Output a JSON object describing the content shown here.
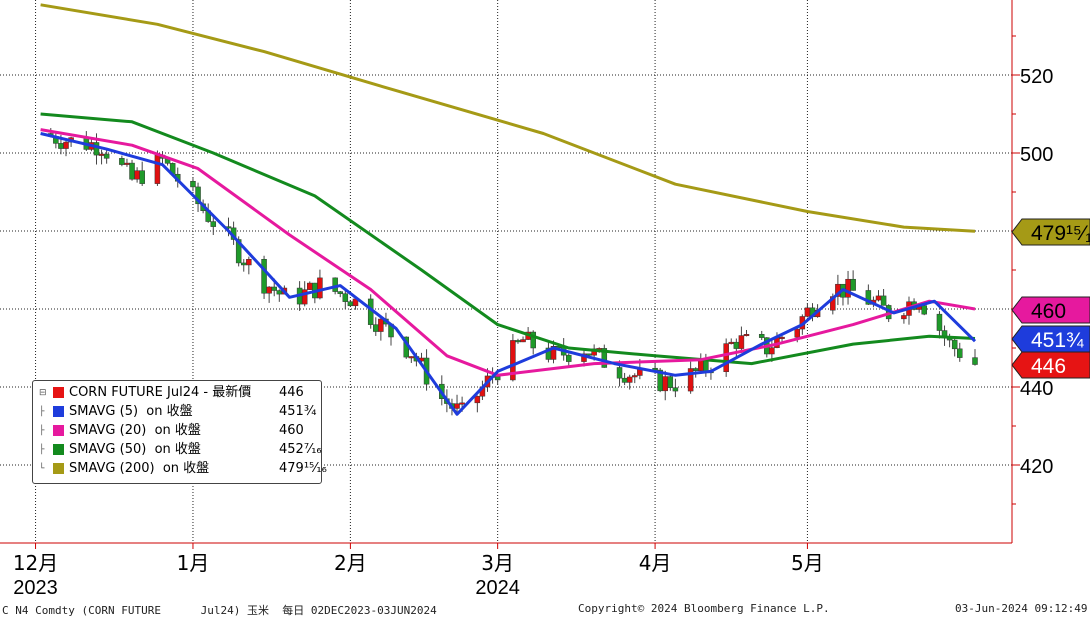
{
  "chart_data": {
    "type": "candlestick-with-lines",
    "instrument": "CORN FUTURE Jul24",
    "ylim": [
      400,
      540
    ],
    "y_ticks": [
      "420",
      "440",
      "460",
      "480",
      "500",
      "520"
    ],
    "x_ticks": [
      {
        "label": "12月",
        "x": "2023-12-01"
      },
      {
        "label": "1月",
        "x": "2024-01-01"
      },
      {
        "label": "2月",
        "x": "2024-02-01"
      },
      {
        "label": "3月",
        "x": "2024-03-01"
      },
      {
        "label": "4月",
        "x": "2024-04-01"
      },
      {
        "label": "5月",
        "x": "2024-05-01"
      }
    ],
    "year_labels": [
      {
        "label": "2023",
        "x": "2023-12-01"
      },
      {
        "label": "2024",
        "x": "2024-03-01"
      }
    ],
    "date_range": [
      "2023-12-02",
      "2024-06-03"
    ],
    "candle_close_series": [
      [
        "2023-12-02",
        505
      ],
      [
        "2023-12-08",
        503
      ],
      [
        "2023-12-14",
        502
      ],
      [
        "2023-12-20",
        493
      ],
      [
        "2023-12-26",
        498
      ],
      [
        "2024-01-02",
        487
      ],
      [
        "2024-01-08",
        478
      ],
      [
        "2024-01-14",
        468
      ],
      [
        "2024-01-20",
        462
      ],
      [
        "2024-01-26",
        466
      ],
      [
        "2024-02-01",
        463
      ],
      [
        "2024-02-07",
        456
      ],
      [
        "2024-02-13",
        449
      ],
      [
        "2024-02-19",
        437
      ],
      [
        "2024-02-23",
        433
      ],
      [
        "2024-02-29",
        443
      ],
      [
        "2024-03-06",
        452
      ],
      [
        "2024-03-12",
        448
      ],
      [
        "2024-03-18",
        450
      ],
      [
        "2024-03-24",
        445
      ],
      [
        "2024-03-30",
        442
      ],
      [
        "2024-04-05",
        441
      ],
      [
        "2024-04-11",
        445
      ],
      [
        "2024-04-17",
        452
      ],
      [
        "2024-04-23",
        450
      ],
      [
        "2024-04-29",
        456
      ],
      [
        "2024-05-05",
        466
      ],
      [
        "2024-05-11",
        464
      ],
      [
        "2024-05-17",
        459
      ],
      [
        "2024-05-23",
        463
      ],
      [
        "2024-05-29",
        451
      ],
      [
        "2024-06-03",
        446
      ]
    ],
    "series": [
      {
        "name": "SMAVG (5)  on 收盤",
        "value_label": "451¾",
        "color": "#1e3cdc",
        "points": [
          [
            "2023-12-02",
            505
          ],
          [
            "2023-12-15",
            501
          ],
          [
            "2023-12-26",
            497
          ],
          [
            "2024-01-08",
            480
          ],
          [
            "2024-01-20",
            463
          ],
          [
            "2024-01-30",
            466
          ],
          [
            "2024-02-10",
            455
          ],
          [
            "2024-02-22",
            433
          ],
          [
            "2024-03-01",
            444
          ],
          [
            "2024-03-12",
            450
          ],
          [
            "2024-03-24",
            446
          ],
          [
            "2024-04-05",
            443
          ],
          [
            "2024-04-12",
            444
          ],
          [
            "2024-04-22",
            451
          ],
          [
            "2024-04-30",
            456
          ],
          [
            "2024-05-08",
            465
          ],
          [
            "2024-05-18",
            459
          ],
          [
            "2024-05-26",
            462
          ],
          [
            "2024-06-03",
            451.75
          ]
        ]
      },
      {
        "name": "SMAVG (20)  on 收盤",
        "value_label": "460",
        "color": "#e6199e",
        "points": [
          [
            "2023-12-02",
            506
          ],
          [
            "2023-12-20",
            502
          ],
          [
            "2024-01-02",
            496
          ],
          [
            "2024-01-20",
            479
          ],
          [
            "2024-02-05",
            465
          ],
          [
            "2024-02-20",
            448
          ],
          [
            "2024-03-01",
            443
          ],
          [
            "2024-03-20",
            446
          ],
          [
            "2024-04-10",
            447
          ],
          [
            "2024-04-25",
            451
          ],
          [
            "2024-05-10",
            456
          ],
          [
            "2024-05-25",
            462
          ],
          [
            "2024-06-03",
            460
          ]
        ]
      },
      {
        "name": "SMAVG (50)  on 收盤",
        "value_label": "452⁷⁄₁₆",
        "color": "#138a1e",
        "points": [
          [
            "2023-12-02",
            510
          ],
          [
            "2023-12-20",
            508
          ],
          [
            "2024-01-05",
            500
          ],
          [
            "2024-01-25",
            489
          ],
          [
            "2024-02-15",
            470
          ],
          [
            "2024-03-01",
            456
          ],
          [
            "2024-03-15",
            450
          ],
          [
            "2024-04-01",
            448
          ],
          [
            "2024-04-20",
            446
          ],
          [
            "2024-05-10",
            451
          ],
          [
            "2024-05-25",
            453
          ],
          [
            "2024-06-03",
            452.4375
          ]
        ]
      },
      {
        "name": "SMAVG (200)  on 收盤",
        "value_label": "479¹⁵⁄₁₆",
        "color": "#a59a16",
        "points": [
          [
            "2023-12-02",
            538
          ],
          [
            "2023-12-25",
            533
          ],
          [
            "2024-01-15",
            526
          ],
          [
            "2024-02-10",
            516
          ],
          [
            "2024-03-10",
            505
          ],
          [
            "2024-04-05",
            492
          ],
          [
            "2024-05-01",
            485
          ],
          [
            "2024-05-20",
            481
          ],
          [
            "2024-06-03",
            479.9375
          ]
        ]
      }
    ],
    "last_price": {
      "name": "CORN FUTURE Jul24 - 最新價",
      "value_label": "446",
      "color": "#e61414"
    },
    "axis_tags": [
      {
        "label": "479¹⁵⁄₁₆",
        "value": 480,
        "color": "#a59a16",
        "text_color": "#000"
      },
      {
        "label": "460",
        "value": 460,
        "color": "#e6199e",
        "text_color": "#000"
      },
      {
        "label": "451¾",
        "value": 451.75,
        "color": "#1e3cdc",
        "text_color": "#fff"
      },
      {
        "label": "446",
        "value": 446,
        "color": "#e61414",
        "text_color": "#fff"
      }
    ],
    "grid": true,
    "legend_position": "bottom-left"
  },
  "legend": {
    "rows": [
      {
        "name": "CORN FUTURE Jul24 - 最新價",
        "value": "446",
        "color": "#e61414"
      },
      {
        "name": "SMAVG (5)  on 收盤",
        "value": "451¾",
        "color": "#1e3cdc"
      },
      {
        "name": "SMAVG (20)  on 收盤",
        "value": "460",
        "color": "#e6199e"
      },
      {
        "name": "SMAVG (50)  on 收盤",
        "value": "452⁷⁄₁₆",
        "color": "#138a1e"
      },
      {
        "name": "SMAVG (200)  on 收盤",
        "value": "479¹⁵⁄₁₆",
        "color": "#a59a16"
      }
    ]
  },
  "footer": {
    "left": "C N4 Comdty (CORN FUTURE      Jul24) 玉米  每日 02DEC2023-03JUN2024",
    "center": "Copyright© 2024 Bloomberg Finance L.P.",
    "right": "03-Jun-2024 09:12:49"
  }
}
